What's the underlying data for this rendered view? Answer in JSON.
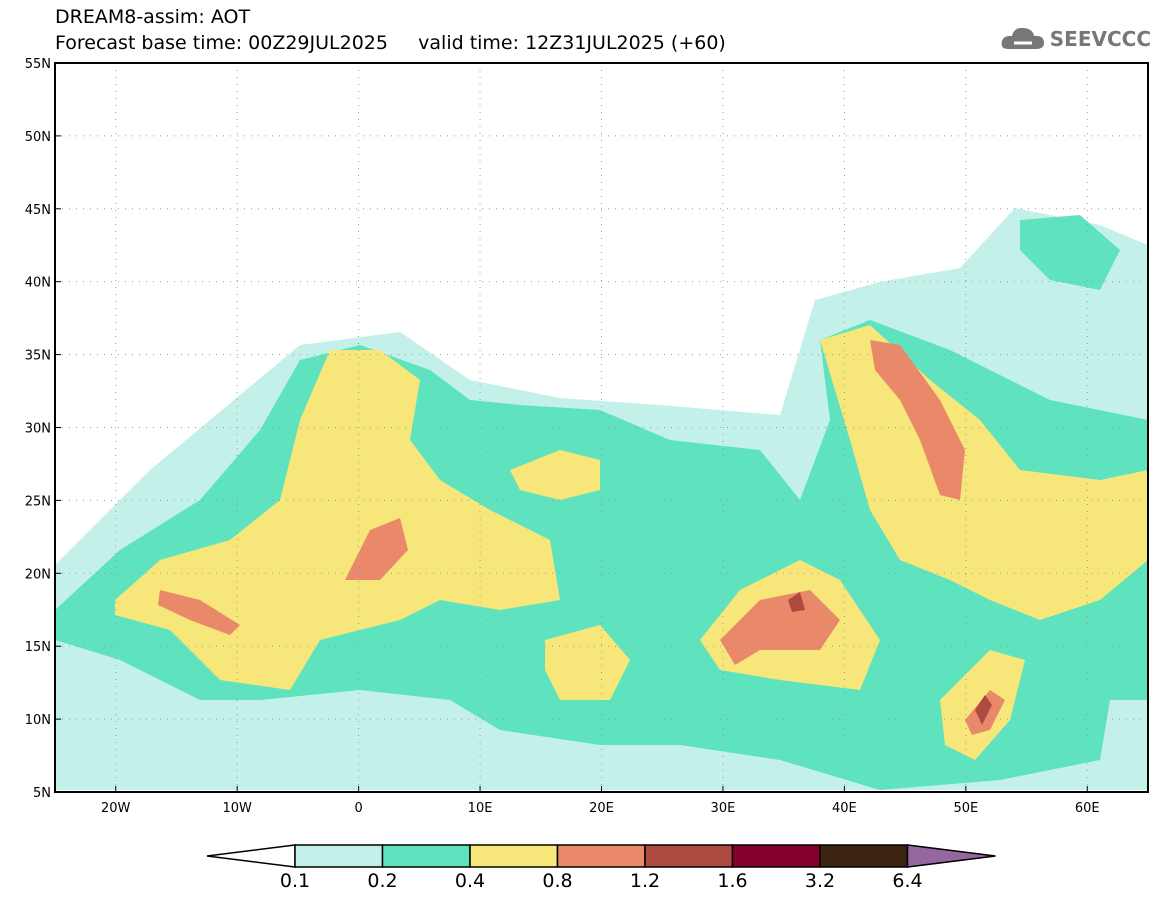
{
  "header": {
    "title": "DREAM8-assim: AOT",
    "subtitle": "Forecast base time: 00Z29JUL2025     valid time: 12Z31JUL2025 (+60)",
    "logo_text": "SEEVCCC"
  },
  "map": {
    "lon_range": [
      -25,
      65
    ],
    "lat_range": [
      5,
      55
    ],
    "lat_labels": [
      "55N",
      "50N",
      "45N",
      "40N",
      "35N",
      "30N",
      "25N",
      "20N",
      "15N",
      "10N",
      "5N"
    ],
    "lon_labels": [
      "20W",
      "10W",
      "0",
      "10E",
      "20E",
      "30E",
      "40E",
      "50E",
      "60E"
    ]
  },
  "legend": {
    "labels": [
      "0.1",
      "0.2",
      "0.4",
      "0.8",
      "1.2",
      "1.6",
      "3.2",
      "6.4"
    ],
    "colors": [
      "#ffffff",
      "#c3f1e9",
      "#5fe3be",
      "#f7e67a",
      "#e9896a",
      "#ad4b41",
      "#85002a",
      "#3b2410",
      "#9467a1"
    ]
  }
}
